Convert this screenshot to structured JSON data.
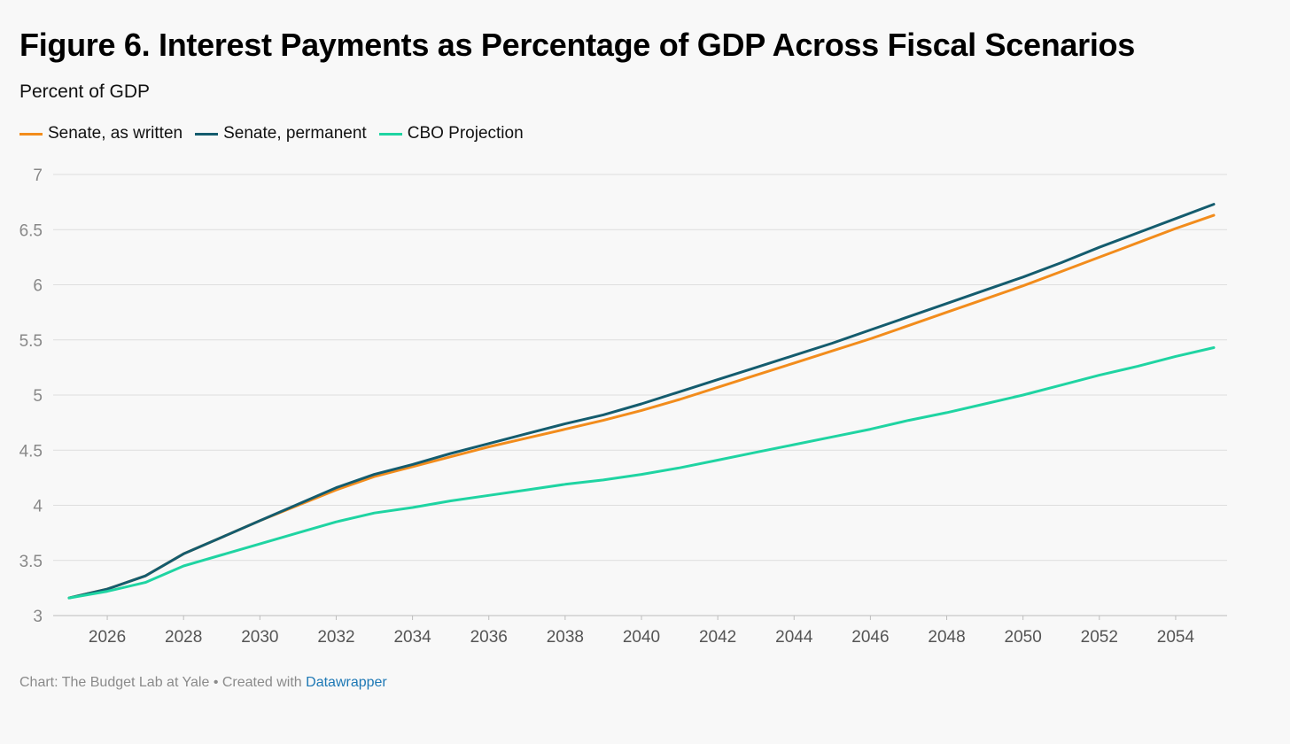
{
  "header": {
    "title": "Figure 6. Interest Payments as Percentage of GDP Across Fiscal Scenarios",
    "subtitle": "Percent of GDP"
  },
  "footer": {
    "prefix": "Chart: The Budget Lab at Yale • Created with ",
    "link": "Datawrapper"
  },
  "chart_data": {
    "type": "line",
    "title": "Figure 6. Interest Payments as Percentage of GDP Across Fiscal Scenarios",
    "ylabel": "Percent of GDP",
    "xlim": [
      2025,
      2055
    ],
    "ylim": [
      3,
      7
    ],
    "yticks": [
      3,
      3.5,
      4,
      4.5,
      5,
      5.5,
      6,
      6.5,
      7
    ],
    "ytick_labels": [
      "3",
      "3.5",
      "4",
      "4.5",
      "5",
      "5.5",
      "6",
      "6.5",
      "7"
    ],
    "xticks": [
      2026,
      2028,
      2030,
      2032,
      2034,
      2036,
      2038,
      2040,
      2042,
      2044,
      2046,
      2048,
      2050,
      2052,
      2054
    ],
    "xtick_labels": [
      "2026",
      "2028",
      "2030",
      "2032",
      "2034",
      "2036",
      "2038",
      "2040",
      "2042",
      "2044",
      "2046",
      "2048",
      "2050",
      "2052",
      "2054"
    ],
    "grid": true,
    "legend_position": "top-left",
    "x": [
      2025,
      2026,
      2027,
      2028,
      2029,
      2030,
      2031,
      2032,
      2033,
      2034,
      2035,
      2036,
      2037,
      2038,
      2039,
      2040,
      2041,
      2042,
      2043,
      2044,
      2045,
      2046,
      2047,
      2048,
      2049,
      2050,
      2051,
      2052,
      2053,
      2054,
      2055
    ],
    "series": [
      {
        "name": "Senate, as written",
        "color": "#f28c1c",
        "values": [
          3.16,
          3.24,
          3.36,
          3.56,
          3.71,
          3.86,
          4.0,
          4.14,
          4.26,
          4.35,
          4.44,
          4.53,
          4.61,
          4.69,
          4.77,
          4.86,
          4.96,
          5.07,
          5.18,
          5.29,
          5.4,
          5.51,
          5.63,
          5.75,
          5.87,
          5.99,
          6.12,
          6.25,
          6.38,
          6.51,
          6.63
        ]
      },
      {
        "name": "Senate, permanent",
        "color": "#145c6e",
        "values": [
          3.16,
          3.24,
          3.36,
          3.56,
          3.71,
          3.86,
          4.01,
          4.16,
          4.28,
          4.37,
          4.47,
          4.56,
          4.65,
          4.74,
          4.82,
          4.92,
          5.03,
          5.14,
          5.25,
          5.36,
          5.47,
          5.59,
          5.71,
          5.83,
          5.95,
          6.07,
          6.2,
          6.34,
          6.47,
          6.6,
          6.73
        ]
      },
      {
        "name": "CBO Projection",
        "color": "#1fd4a2",
        "values": [
          3.16,
          3.22,
          3.3,
          3.45,
          3.55,
          3.65,
          3.75,
          3.85,
          3.93,
          3.98,
          4.04,
          4.09,
          4.14,
          4.19,
          4.23,
          4.28,
          4.34,
          4.41,
          4.48,
          4.55,
          4.62,
          4.69,
          4.77,
          4.84,
          4.92,
          5.0,
          5.09,
          5.18,
          5.26,
          5.35,
          5.43
        ]
      }
    ]
  }
}
